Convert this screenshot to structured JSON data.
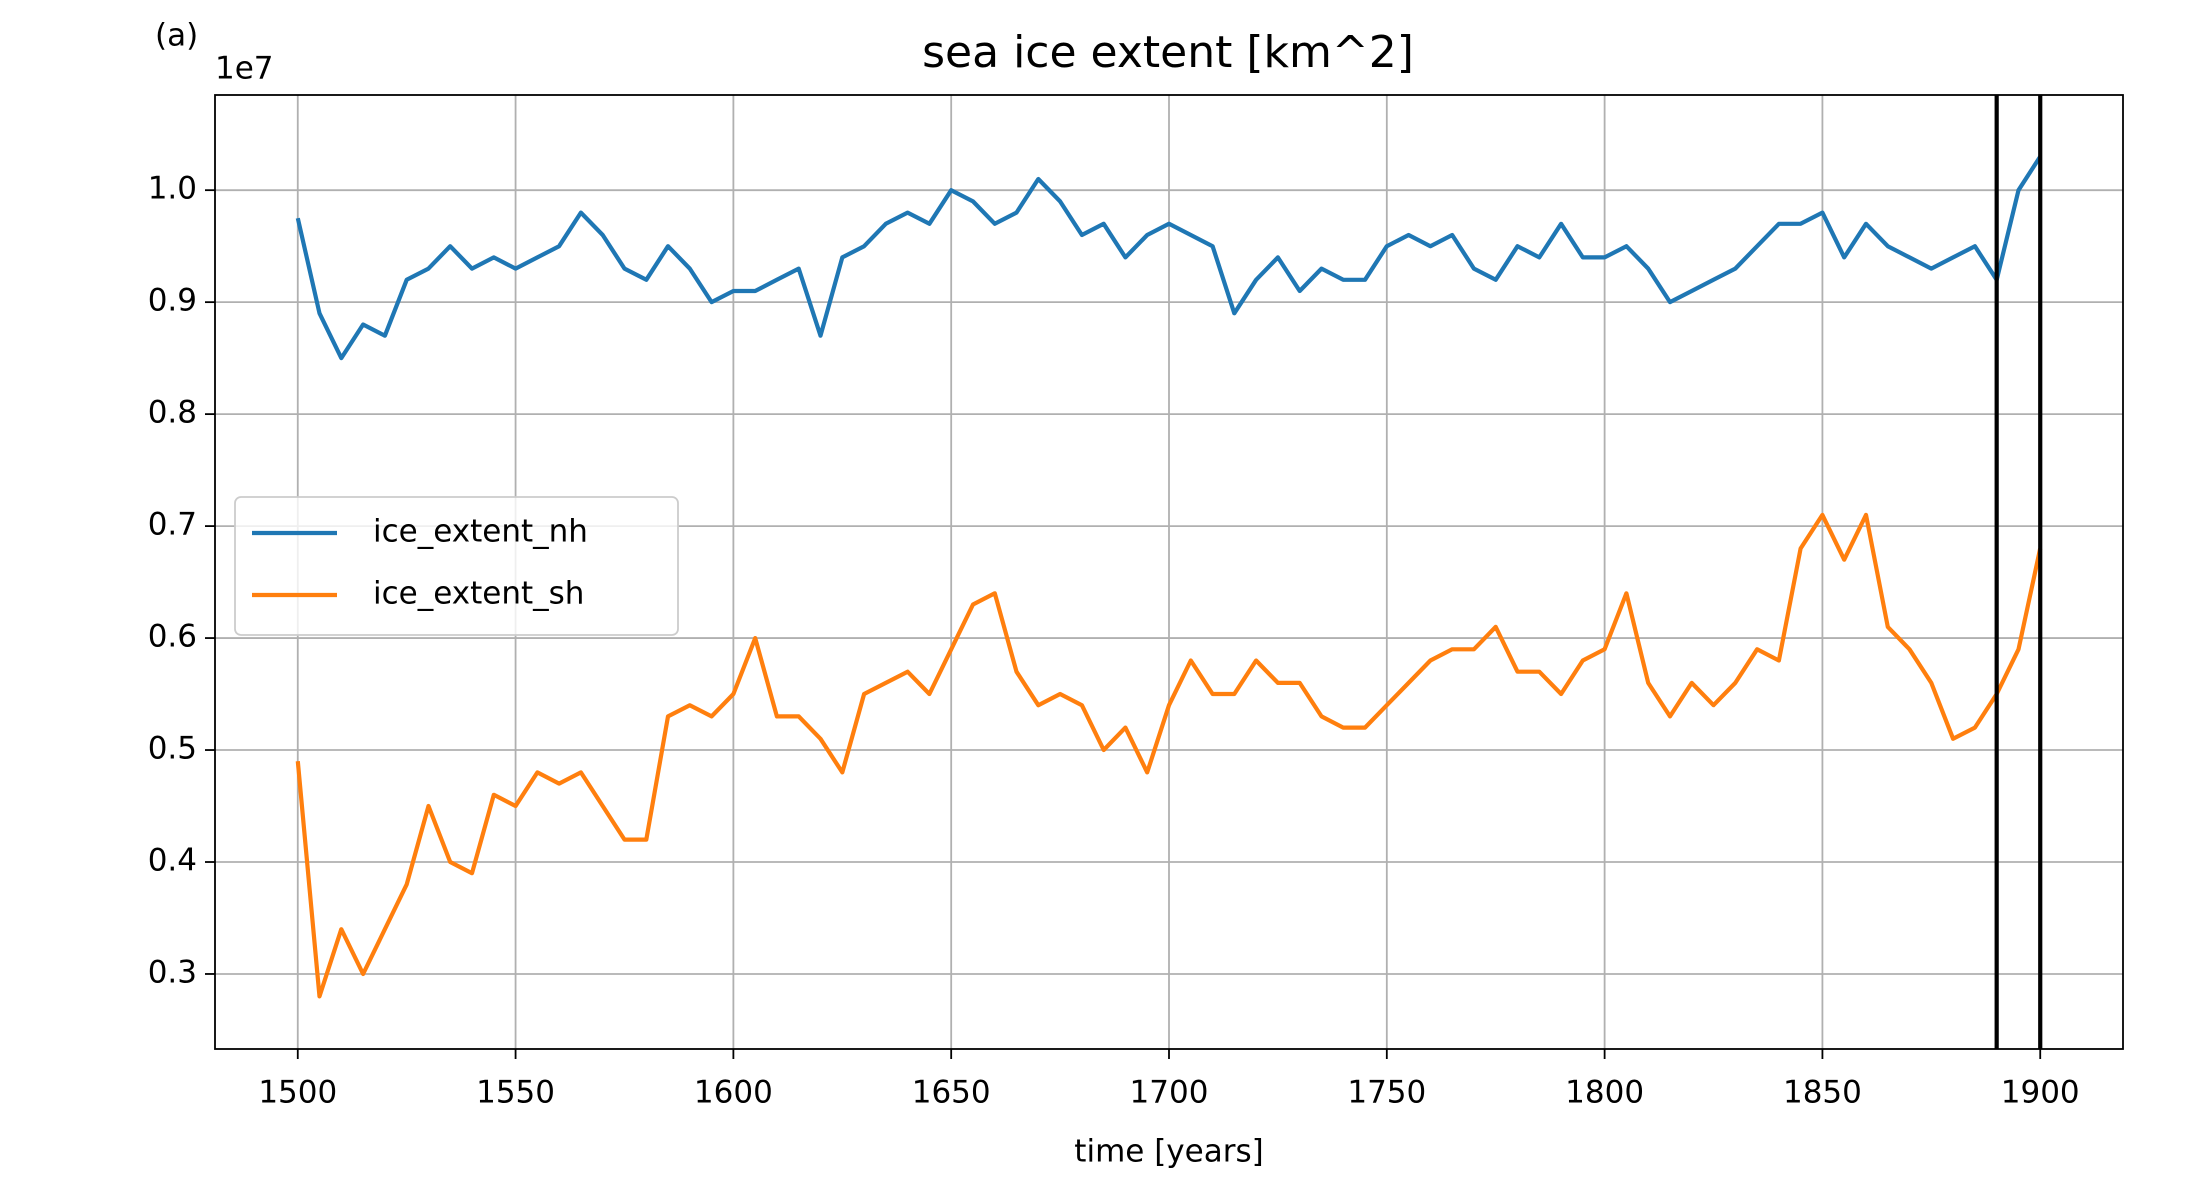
{
  "chart_data": {
    "type": "line",
    "title": "sea ice extent [km^2]",
    "annotation": "(a)",
    "y_offset_label": "1e7",
    "x_label": "time [years]",
    "x": [
      1500,
      1505,
      1510,
      1515,
      1520,
      1525,
      1530,
      1535,
      1540,
      1545,
      1550,
      1555,
      1560,
      1565,
      1570,
      1575,
      1580,
      1585,
      1590,
      1595,
      1600,
      1605,
      1610,
      1615,
      1620,
      1625,
      1630,
      1635,
      1640,
      1645,
      1650,
      1655,
      1660,
      1665,
      1670,
      1675,
      1680,
      1685,
      1690,
      1695,
      1700,
      1705,
      1710,
      1715,
      1720,
      1725,
      1730,
      1735,
      1740,
      1745,
      1750,
      1755,
      1760,
      1765,
      1770,
      1775,
      1780,
      1785,
      1790,
      1795,
      1800,
      1805,
      1810,
      1815,
      1820,
      1825,
      1830,
      1835,
      1840,
      1845,
      1850,
      1855,
      1860,
      1865,
      1870,
      1875,
      1880,
      1885,
      1890,
      1895,
      1900
    ],
    "series": [
      {
        "name": "ice_extent_nh",
        "color": "#1f77b4",
        "values": [
          0.975,
          0.89,
          0.85,
          0.88,
          0.87,
          0.92,
          0.93,
          0.95,
          0.93,
          0.94,
          0.93,
          0.94,
          0.95,
          0.98,
          0.96,
          0.93,
          0.92,
          0.95,
          0.93,
          0.9,
          0.91,
          0.91,
          0.92,
          0.93,
          0.87,
          0.94,
          0.95,
          0.97,
          0.98,
          0.97,
          1.0,
          0.99,
          0.97,
          0.98,
          1.01,
          0.99,
          0.96,
          0.97,
          0.94,
          0.96,
          0.97,
          0.96,
          0.95,
          0.89,
          0.92,
          0.94,
          0.91,
          0.93,
          0.92,
          0.92,
          0.95,
          0.96,
          0.95,
          0.96,
          0.93,
          0.92,
          0.95,
          0.94,
          0.97,
          0.94,
          0.94,
          0.95,
          0.93,
          0.9,
          0.91,
          0.92,
          0.93,
          0.95,
          0.97,
          0.97,
          0.98,
          0.94,
          0.97,
          0.95,
          0.94,
          0.93,
          0.94,
          0.95,
          0.92,
          1.0,
          1.03
        ]
      },
      {
        "name": "ice_extent_sh",
        "color": "#ff7f0e",
        "values": [
          0.49,
          0.28,
          0.34,
          0.3,
          0.34,
          0.38,
          0.45,
          0.4,
          0.39,
          0.46,
          0.45,
          0.48,
          0.47,
          0.48,
          0.45,
          0.42,
          0.42,
          0.53,
          0.54,
          0.53,
          0.55,
          0.6,
          0.53,
          0.53,
          0.51,
          0.48,
          0.55,
          0.56,
          0.57,
          0.55,
          0.59,
          0.63,
          0.64,
          0.57,
          0.54,
          0.55,
          0.54,
          0.5,
          0.52,
          0.48,
          0.54,
          0.58,
          0.55,
          0.55,
          0.58,
          0.56,
          0.56,
          0.53,
          0.52,
          0.52,
          0.54,
          0.56,
          0.58,
          0.59,
          0.59,
          0.61,
          0.57,
          0.57,
          0.55,
          0.58,
          0.59,
          0.64,
          0.56,
          0.53,
          0.56,
          0.54,
          0.56,
          0.59,
          0.58,
          0.68,
          0.71,
          0.67,
          0.71,
          0.61,
          0.59,
          0.56,
          0.51,
          0.52,
          0.55,
          0.59,
          0.68
        ]
      }
    ],
    "vlines": [
      1890,
      1900
    ],
    "vline_color": "#000000",
    "xlim": [
      1481,
      1919
    ],
    "ylim": [
      0.233,
      1.085
    ],
    "xticks": [
      1500,
      1550,
      1600,
      1650,
      1700,
      1750,
      1800,
      1850,
      1900
    ],
    "yticks": [
      {
        "value": 0.3,
        "label": "0.3"
      },
      {
        "value": 0.4,
        "label": "0.4"
      },
      {
        "value": 0.5,
        "label": "0.5"
      },
      {
        "value": 0.6,
        "label": "0.6"
      },
      {
        "value": 0.7,
        "label": "0.7"
      },
      {
        "value": 0.8,
        "label": "0.8"
      },
      {
        "value": 0.9,
        "label": "0.9"
      },
      {
        "value": 1,
        "label": "1.0"
      }
    ],
    "grid": true,
    "legend": "center left"
  }
}
